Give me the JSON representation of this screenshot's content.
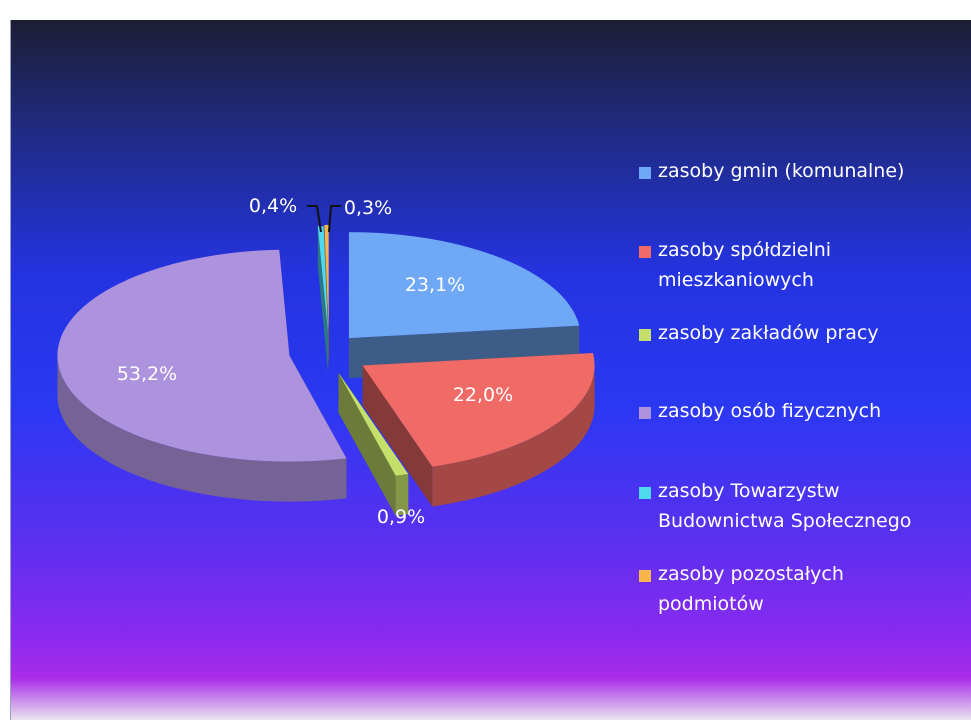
{
  "colors": {
    "gmin": "#6fa8f5",
    "spoldzielni": "#f06a66",
    "zakladow": "#c4e06a",
    "osob": "#ad92dd",
    "tbs": "#4fd9ee",
    "pozostalych": "#f7b64a"
  },
  "chart_data": {
    "type": "pie",
    "title": "",
    "categories": [
      "zasoby gmin (komunalne)",
      "zasoby spółdzielni mieszkaniowych",
      "zasoby zakładów pracy",
      "zasoby osób fizycznych",
      "zasoby Towarzystw Budownictwa Społecznego",
      "zasoby pozostałych podmiotów"
    ],
    "values": [
      23.1,
      22.0,
      0.9,
      53.2,
      0.4,
      0.3
    ],
    "value_labels": [
      "23,1%",
      "22,0%",
      "0,9%",
      "53,2%",
      "0,4%",
      "0,3%"
    ],
    "style": "3d-exploded",
    "legend_position": "right"
  },
  "legend": {
    "items": [
      {
        "lines": [
          "zasoby gmin (komunalne)"
        ],
        "color_key": "gmin"
      },
      {
        "lines": [
          "zasoby spółdzielni",
          "mieszkaniowych"
        ],
        "color_key": "spoldzielni"
      },
      {
        "lines": [
          "zasoby zakładów pracy"
        ],
        "color_key": "zakladow"
      },
      {
        "lines": [
          "zasoby osób fizycznych"
        ],
        "color_key": "osob"
      },
      {
        "lines": [
          "zasoby Towarzystw",
          "Budownictwa Społecznego"
        ],
        "color_key": "tbs"
      },
      {
        "lines": [
          "zasoby pozostałych",
          "podmiotów"
        ],
        "color_key": "pozostalych"
      }
    ]
  }
}
